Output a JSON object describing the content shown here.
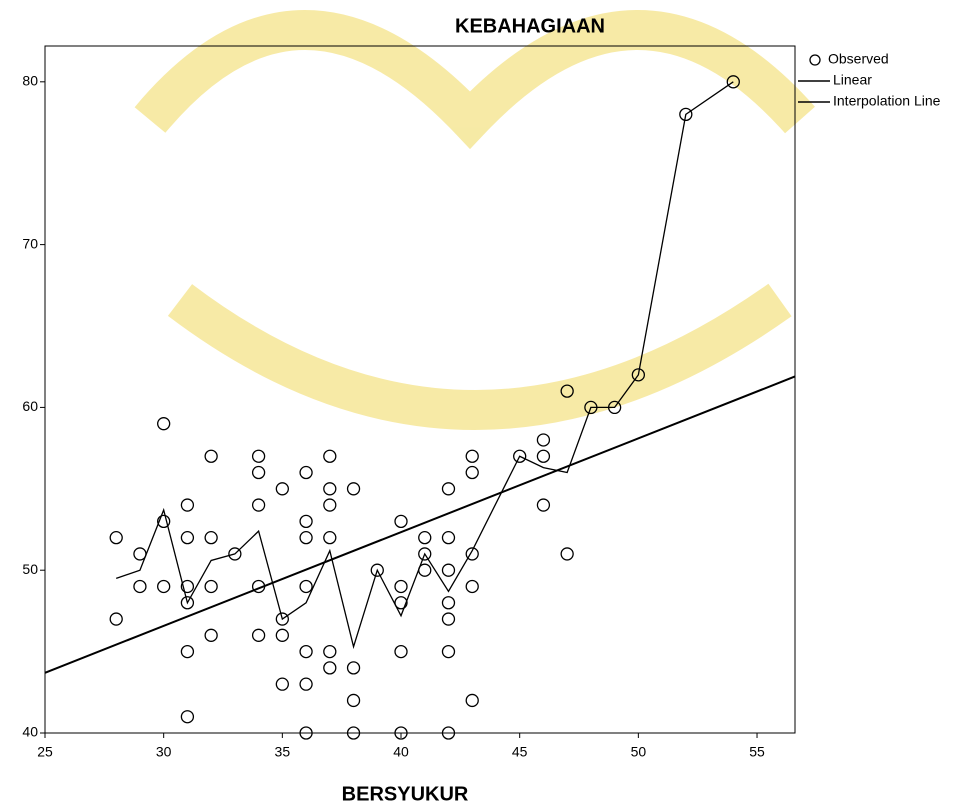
{
  "chart_data": {
    "type": "scatter",
    "title": "KEBAHAGIAAN",
    "x_label": "BERSYUKUR",
    "xlim": [
      25,
      56.6
    ],
    "ylim": [
      40,
      82.2
    ],
    "xticks": [
      25,
      30,
      35,
      40,
      45,
      50,
      55
    ],
    "yticks": [
      40,
      50,
      60,
      70,
      80
    ],
    "series": [
      {
        "name": "Observed",
        "type": "scatter",
        "color": "#000000",
        "x": [
          28,
          28,
          29,
          29,
          30,
          30,
          30,
          31,
          31,
          31,
          31,
          31,
          31,
          32,
          32,
          32,
          32,
          33,
          34,
          34,
          34,
          34,
          34,
          35,
          35,
          35,
          35,
          36,
          36,
          36,
          36,
          36,
          36,
          36,
          37,
          37,
          37,
          37,
          37,
          37,
          38,
          38,
          38,
          38,
          39,
          40,
          40,
          40,
          40,
          40,
          41,
          41,
          41,
          42,
          42,
          42,
          42,
          42,
          42,
          42,
          43,
          43,
          43,
          43,
          43,
          45,
          46,
          46,
          46,
          47,
          47,
          48,
          49,
          50,
          52,
          54
        ],
        "values": [
          52,
          47,
          51,
          49,
          59,
          53,
          49,
          54,
          52,
          49,
          48,
          45,
          41,
          57,
          52,
          49,
          46,
          51,
          57,
          56,
          54,
          49,
          46,
          55,
          47,
          46,
          43,
          56,
          53,
          52,
          49,
          45,
          43,
          40,
          57,
          55,
          54,
          52,
          45,
          44,
          55,
          44,
          42,
          40,
          50,
          53,
          49,
          48,
          45,
          40,
          52,
          51,
          50,
          55,
          52,
          50,
          48,
          47,
          45,
          40,
          57,
          56,
          51,
          49,
          42,
          57,
          58,
          57,
          54,
          61,
          51,
          60,
          60,
          62,
          78,
          80
        ]
      },
      {
        "name": "Linear",
        "type": "line",
        "color": "#000000",
        "x": [
          25,
          56.6
        ],
        "values": [
          43.7,
          61.9
        ]
      },
      {
        "name": "Interpolation Line",
        "type": "line",
        "color": "#000000",
        "x": [
          28,
          29,
          30,
          31,
          32,
          33,
          34,
          35,
          36,
          37,
          38,
          39,
          40,
          41,
          42,
          43,
          45,
          46,
          47,
          48,
          49,
          50,
          52,
          54
        ],
        "values": [
          49.5,
          50,
          53.7,
          48,
          50.6,
          51,
          52.4,
          47,
          48,
          51.2,
          45.3,
          50,
          47.2,
          51,
          48.7,
          51.2,
          57,
          56.3,
          56,
          60,
          60,
          62,
          78,
          80
        ]
      }
    ]
  }
}
